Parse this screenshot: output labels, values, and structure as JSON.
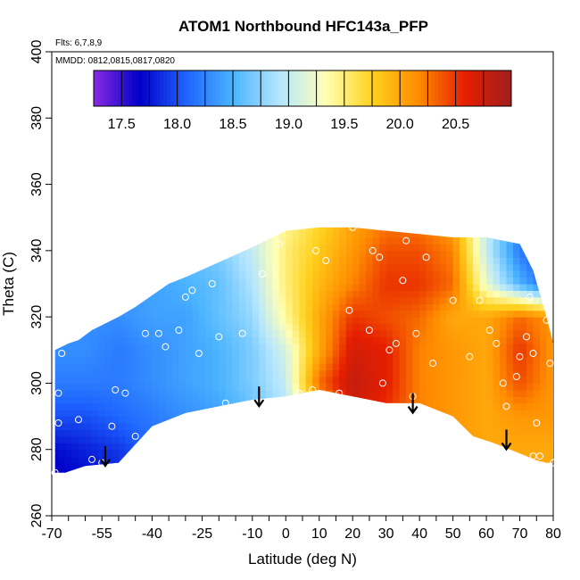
{
  "chart_data": {
    "type": "heatmap",
    "title": "ATOM1 Northbound HFC143a_PFP",
    "annotations": {
      "flights": "Flts: 6,7,8,9",
      "dates": "MMDD: 0812,0815,0817,0820"
    },
    "xlabel": "Latitude (deg N)",
    "ylabel": "Theta (C)",
    "xlim": [
      -70,
      80
    ],
    "ylim": [
      260,
      400
    ],
    "x_ticks": [
      -70,
      -55,
      -40,
      -25,
      -10,
      0,
      10,
      20,
      30,
      40,
      50,
      60,
      70,
      80
    ],
    "x_tick_labels": [
      "-70",
      "-55",
      "-40",
      "-25",
      "-10",
      "0",
      "10",
      "20",
      "30",
      "40",
      "50",
      "60",
      "70",
      "80"
    ],
    "y_ticks": [
      260,
      280,
      300,
      320,
      340,
      360,
      380,
      400
    ],
    "y_tick_labels": [
      "260",
      "280",
      "300",
      "320",
      "340",
      "360",
      "380",
      "400"
    ],
    "grid": false,
    "colorbar": {
      "range": [
        17.25,
        21.0
      ],
      "ticks": [
        17.5,
        18.0,
        18.5,
        19.0,
        19.5,
        20.0,
        20.5
      ],
      "tick_labels": [
        "17.5",
        "18.0",
        "18.5",
        "19.0",
        "19.5",
        "20.0",
        "20.5"
      ],
      "colors": [
        "#8a2be2",
        "#0000c8",
        "#1e64ff",
        "#4ab4ff",
        "#b4e6ff",
        "#ffffb4",
        "#ffd21e",
        "#ff8c00",
        "#e61e00",
        "#a01e1e"
      ],
      "placement": "top"
    },
    "contour_field": {
      "x": [
        -70,
        -60,
        -50,
        -40,
        -30,
        -20,
        -10,
        0,
        10,
        20,
        30,
        40,
        50,
        60,
        70,
        80
      ],
      "y": [
        270,
        280,
        290,
        300,
        310,
        320,
        330,
        340,
        350
      ],
      "values": [
        [
          17.6,
          17.7,
          17.8,
          18.0,
          18.3,
          18.4,
          18.6,
          18.9,
          19.2,
          20.3,
          20.3,
          20.2,
          20.1,
          20.0,
          20.0,
          20.0
        ],
        [
          17.7,
          17.8,
          17.9,
          18.1,
          18.3,
          18.4,
          18.6,
          18.9,
          19.3,
          20.4,
          20.4,
          20.2,
          20.1,
          20.0,
          20.0,
          20.0
        ],
        [
          18.0,
          18.0,
          18.1,
          18.2,
          18.3,
          18.4,
          18.6,
          18.9,
          19.6,
          20.7,
          20.5,
          20.2,
          20.1,
          20.0,
          20.1,
          20.1
        ],
        [
          18.2,
          18.2,
          18.2,
          18.3,
          18.4,
          18.5,
          18.7,
          19.0,
          20.3,
          20.8,
          20.6,
          20.2,
          20.1,
          20.0,
          20.4,
          20.1
        ],
        [
          18.3,
          18.3,
          18.2,
          18.3,
          18.4,
          18.5,
          18.7,
          19.1,
          20.0,
          20.7,
          20.6,
          20.2,
          20.1,
          20.0,
          20.5,
          20.1
        ],
        [
          18.3,
          18.3,
          18.3,
          18.4,
          18.4,
          18.6,
          18.8,
          19.4,
          20.0,
          20.5,
          20.4,
          20.3,
          20.0,
          20.0,
          20.3,
          20.1
        ],
        [
          18.4,
          18.4,
          18.4,
          18.4,
          18.5,
          18.6,
          18.9,
          19.5,
          19.9,
          20.2,
          20.5,
          20.5,
          20.3,
          19.2,
          18.5,
          18.0
        ],
        [
          18.5,
          18.5,
          18.5,
          18.5,
          18.6,
          18.7,
          19.0,
          19.5,
          19.8,
          20.1,
          20.4,
          20.4,
          20.2,
          19.0,
          18.2,
          17.9
        ],
        [
          18.6,
          18.6,
          18.6,
          18.6,
          18.7,
          18.8,
          19.0,
          19.4,
          19.7,
          20.0,
          20.2,
          20.2,
          20.0,
          19.0,
          18.3,
          18.0
        ]
      ]
    },
    "domain_outline": {
      "latitude": [
        -69,
        -69,
        -65,
        -62,
        -58,
        -50,
        -45,
        -35,
        -30,
        -10,
        0,
        10,
        20,
        30,
        40,
        50,
        60,
        70,
        74,
        78,
        80,
        80,
        78,
        74,
        72,
        62,
        56,
        50,
        40,
        30,
        20,
        10,
        0,
        -10,
        -20,
        -30,
        -40,
        -50,
        -60,
        -66,
        -69
      ],
      "theta": [
        273,
        310,
        312,
        313,
        316,
        320,
        323,
        330,
        332,
        341,
        346,
        347,
        347,
        346,
        345,
        344,
        344,
        342,
        334,
        320,
        312,
        276,
        276,
        277,
        278,
        282,
        284,
        290,
        294,
        294,
        296,
        298,
        296,
        295,
        293,
        291,
        287,
        276,
        275,
        273,
        273
      ]
    },
    "observations": [
      {
        "lat": -69,
        "theta": 273
      },
      {
        "lat": -68,
        "theta": 288
      },
      {
        "lat": -68,
        "theta": 297
      },
      {
        "lat": -67,
        "theta": 309
      },
      {
        "lat": -62,
        "theta": 289
      },
      {
        "lat": -58,
        "theta": 277
      },
      {
        "lat": -55,
        "theta": 276
      },
      {
        "lat": -52,
        "theta": 287
      },
      {
        "lat": -51,
        "theta": 298
      },
      {
        "lat": -48,
        "theta": 297
      },
      {
        "lat": -47,
        "theta": 277
      },
      {
        "lat": -45,
        "theta": 284
      },
      {
        "lat": -42,
        "theta": 315
      },
      {
        "lat": -38,
        "theta": 315
      },
      {
        "lat": -36,
        "theta": 311
      },
      {
        "lat": -34,
        "theta": 288
      },
      {
        "lat": -32,
        "theta": 316
      },
      {
        "lat": -30,
        "theta": 326
      },
      {
        "lat": -28,
        "theta": 328
      },
      {
        "lat": -26,
        "theta": 309
      },
      {
        "lat": -24,
        "theta": 291
      },
      {
        "lat": -22,
        "theta": 330
      },
      {
        "lat": -20,
        "theta": 314
      },
      {
        "lat": -18,
        "theta": 294
      },
      {
        "lat": -13,
        "theta": 315
      },
      {
        "lat": -7,
        "theta": 333
      },
      {
        "lat": -2,
        "theta": 342
      },
      {
        "lat": 4,
        "theta": 297
      },
      {
        "lat": 8,
        "theta": 298
      },
      {
        "lat": 9,
        "theta": 340
      },
      {
        "lat": 12,
        "theta": 337
      },
      {
        "lat": 16,
        "theta": 297
      },
      {
        "lat": 19,
        "theta": 322
      },
      {
        "lat": 20,
        "theta": 347
      },
      {
        "lat": 25,
        "theta": 316
      },
      {
        "lat": 26,
        "theta": 340
      },
      {
        "lat": 28,
        "theta": 338
      },
      {
        "lat": 29,
        "theta": 300
      },
      {
        "lat": 31,
        "theta": 310
      },
      {
        "lat": 33,
        "theta": 312
      },
      {
        "lat": 35,
        "theta": 331
      },
      {
        "lat": 36,
        "theta": 343
      },
      {
        "lat": 38,
        "theta": 296
      },
      {
        "lat": 39,
        "theta": 315
      },
      {
        "lat": 42,
        "theta": 338
      },
      {
        "lat": 44,
        "theta": 306
      },
      {
        "lat": 50,
        "theta": 325
      },
      {
        "lat": 55,
        "theta": 308
      },
      {
        "lat": 58,
        "theta": 325
      },
      {
        "lat": 61,
        "theta": 316
      },
      {
        "lat": 63,
        "theta": 312
      },
      {
        "lat": 65,
        "theta": 300
      },
      {
        "lat": 66,
        "theta": 293
      },
      {
        "lat": 69,
        "theta": 302
      },
      {
        "lat": 70,
        "theta": 308
      },
      {
        "lat": 71,
        "theta": 343
      },
      {
        "lat": 72,
        "theta": 314
      },
      {
        "lat": 73,
        "theta": 326
      },
      {
        "lat": 74,
        "theta": 309
      },
      {
        "lat": 74,
        "theta": 278
      },
      {
        "lat": 75,
        "theta": 288
      },
      {
        "lat": 76,
        "theta": 278
      },
      {
        "lat": 78,
        "theta": 319
      },
      {
        "lat": 79,
        "theta": 306
      },
      {
        "lat": 80,
        "theta": 276
      }
    ],
    "arrows": [
      {
        "lat": -54,
        "theta": 281,
        "direction": "down"
      },
      {
        "lat": -8,
        "theta": 299,
        "direction": "down"
      },
      {
        "lat": 38,
        "theta": 297,
        "direction": "down"
      },
      {
        "lat": 66,
        "theta": 286,
        "direction": "down"
      }
    ]
  }
}
